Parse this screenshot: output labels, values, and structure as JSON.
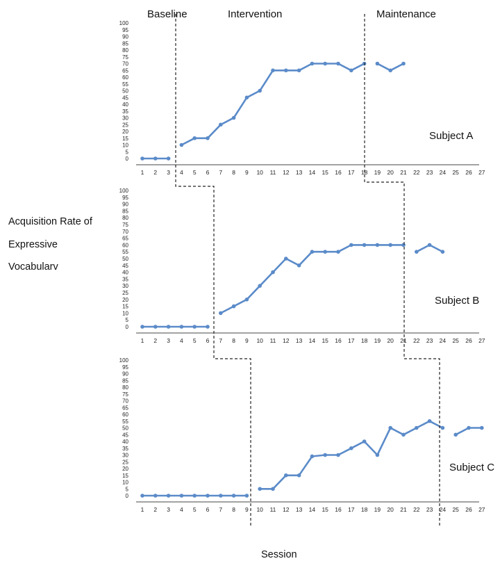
{
  "phases": [
    "Baseline",
    "Intervention",
    "Maintenance"
  ],
  "y_label_lines": [
    "Acquisition Rate of",
    "Expressive",
    "Vocabularv"
  ],
  "x_label": "Session",
  "line_color": "#5B8BC9",
  "chart_data": [
    {
      "type": "line",
      "subject": "Subject A",
      "x": [
        1,
        2,
        3,
        4,
        5,
        6,
        7,
        8,
        9,
        10,
        11,
        12,
        13,
        14,
        15,
        16,
        17,
        18,
        19,
        20,
        21,
        22,
        23,
        24,
        25,
        26,
        27
      ],
      "ylim": [
        0,
        100
      ],
      "yticks": [
        0,
        5,
        10,
        15,
        20,
        25,
        30,
        35,
        40,
        45,
        50,
        55,
        60,
        65,
        70,
        75,
        80,
        85,
        90,
        95,
        100
      ],
      "segments": [
        {
          "phase": "Baseline",
          "x": [
            1,
            2,
            3
          ],
          "y": [
            0,
            0,
            0
          ]
        },
        {
          "phase": "Intervention",
          "x": [
            4,
            5,
            6,
            7,
            8,
            9,
            10,
            11,
            12,
            13,
            14,
            15,
            16,
            17,
            18
          ],
          "y": [
            10,
            15,
            15,
            25,
            30,
            45,
            50,
            65,
            65,
            65,
            70,
            70,
            70,
            65,
            70
          ]
        },
        {
          "phase": "Maintenance",
          "x": [
            19,
            20,
            21
          ],
          "y": [
            70,
            65,
            70
          ]
        }
      ]
    },
    {
      "type": "line",
      "subject": "Subject B",
      "x": [
        1,
        2,
        3,
        4,
        5,
        6,
        7,
        8,
        9,
        10,
        11,
        12,
        13,
        14,
        15,
        16,
        17,
        18,
        19,
        20,
        21,
        22,
        23,
        24,
        25,
        26,
        27
      ],
      "ylim": [
        0,
        100
      ],
      "yticks": [
        0,
        5,
        10,
        15,
        20,
        25,
        30,
        35,
        40,
        45,
        50,
        55,
        60,
        65,
        70,
        75,
        80,
        85,
        90,
        95,
        100
      ],
      "segments": [
        {
          "phase": "Baseline",
          "x": [
            1,
            2,
            3,
            4,
            5,
            6
          ],
          "y": [
            0,
            0,
            0,
            0,
            0,
            0
          ]
        },
        {
          "phase": "Intervention",
          "x": [
            7,
            8,
            9,
            10,
            11,
            12,
            13,
            14,
            15,
            16,
            17,
            18,
            19,
            20,
            21
          ],
          "y": [
            10,
            15,
            20,
            30,
            40,
            50,
            45,
            55,
            55,
            55,
            60,
            60,
            60,
            60,
            60
          ]
        },
        {
          "phase": "Maintenance",
          "x": [
            22,
            23,
            24
          ],
          "y": [
            55,
            60,
            55
          ]
        }
      ]
    },
    {
      "type": "line",
      "subject": "Subject C",
      "x": [
        1,
        2,
        3,
        4,
        5,
        6,
        7,
        8,
        9,
        10,
        11,
        12,
        13,
        14,
        15,
        16,
        17,
        18,
        19,
        20,
        21,
        22,
        23,
        24,
        25,
        26,
        27
      ],
      "ylim": [
        0,
        100
      ],
      "yticks": [
        0,
        5,
        10,
        15,
        20,
        25,
        30,
        35,
        40,
        45,
        50,
        55,
        60,
        65,
        70,
        75,
        80,
        85,
        90,
        95,
        100
      ],
      "segments": [
        {
          "phase": "Baseline",
          "x": [
            1,
            2,
            3,
            4,
            5,
            6,
            7,
            8,
            9
          ],
          "y": [
            0,
            0,
            0,
            0,
            0,
            0,
            0,
            0,
            0
          ]
        },
        {
          "phase": "Intervention",
          "x": [
            10,
            11,
            12,
            13,
            14,
            15,
            16,
            17,
            18,
            19,
            20,
            21,
            22,
            23,
            24
          ],
          "y": [
            5,
            5,
            15,
            15,
            29,
            30,
            30,
            35,
            40,
            30,
            50,
            45,
            50,
            55,
            50
          ]
        },
        {
          "phase": "Maintenance",
          "x": [
            25,
            26,
            27
          ],
          "y": [
            45,
            50,
            50
          ]
        }
      ]
    }
  ]
}
